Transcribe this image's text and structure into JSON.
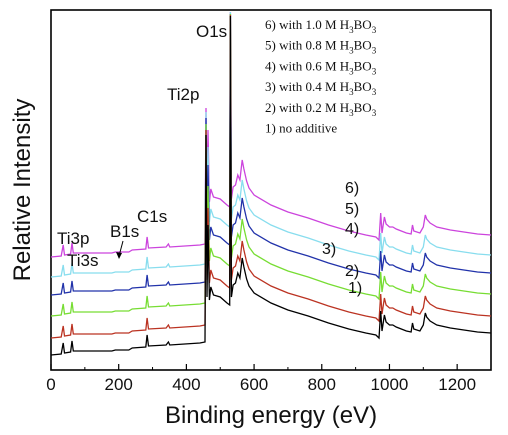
{
  "chart_data": {
    "type": "line",
    "title": "",
    "xlabel": "Binding energy (eV)",
    "ylabel": "Relative Intensity",
    "xlim": [
      0,
      1300
    ],
    "x_ticks": [
      "0",
      "200",
      "400",
      "600",
      "800",
      "1000",
      "1200"
    ],
    "y_ticks_labeled": false,
    "grid": false,
    "legend_position": "top-right",
    "legend_entries": [
      "6) with 1.0 M H3BO3",
      "5) with 0.8 M H3BO3",
      "4) with 0.6 M H3BO3",
      "3) with 0.4 M H3BO3",
      "2) with 0.2 M H3BO3",
      "1) no additive"
    ],
    "peak_labels": [
      "Ti3p",
      "Ti3s",
      "B1s",
      "C1s",
      "Ti2p",
      "O1s"
    ],
    "series": [
      {
        "name": "6)",
        "label": "6)",
        "color": "#cc44dd"
      },
      {
        "name": "5)",
        "label": "5)",
        "color": "#88ddee"
      },
      {
        "name": "4)",
        "label": "4)",
        "color": "#2233aa"
      },
      {
        "name": "3)",
        "label": "3)",
        "color": "#77dd33"
      },
      {
        "name": "2)",
        "label": "2)",
        "color": "#bb3322"
      },
      {
        "name": "1)",
        "label": "1)",
        "color": "#000000"
      }
    ]
  }
}
